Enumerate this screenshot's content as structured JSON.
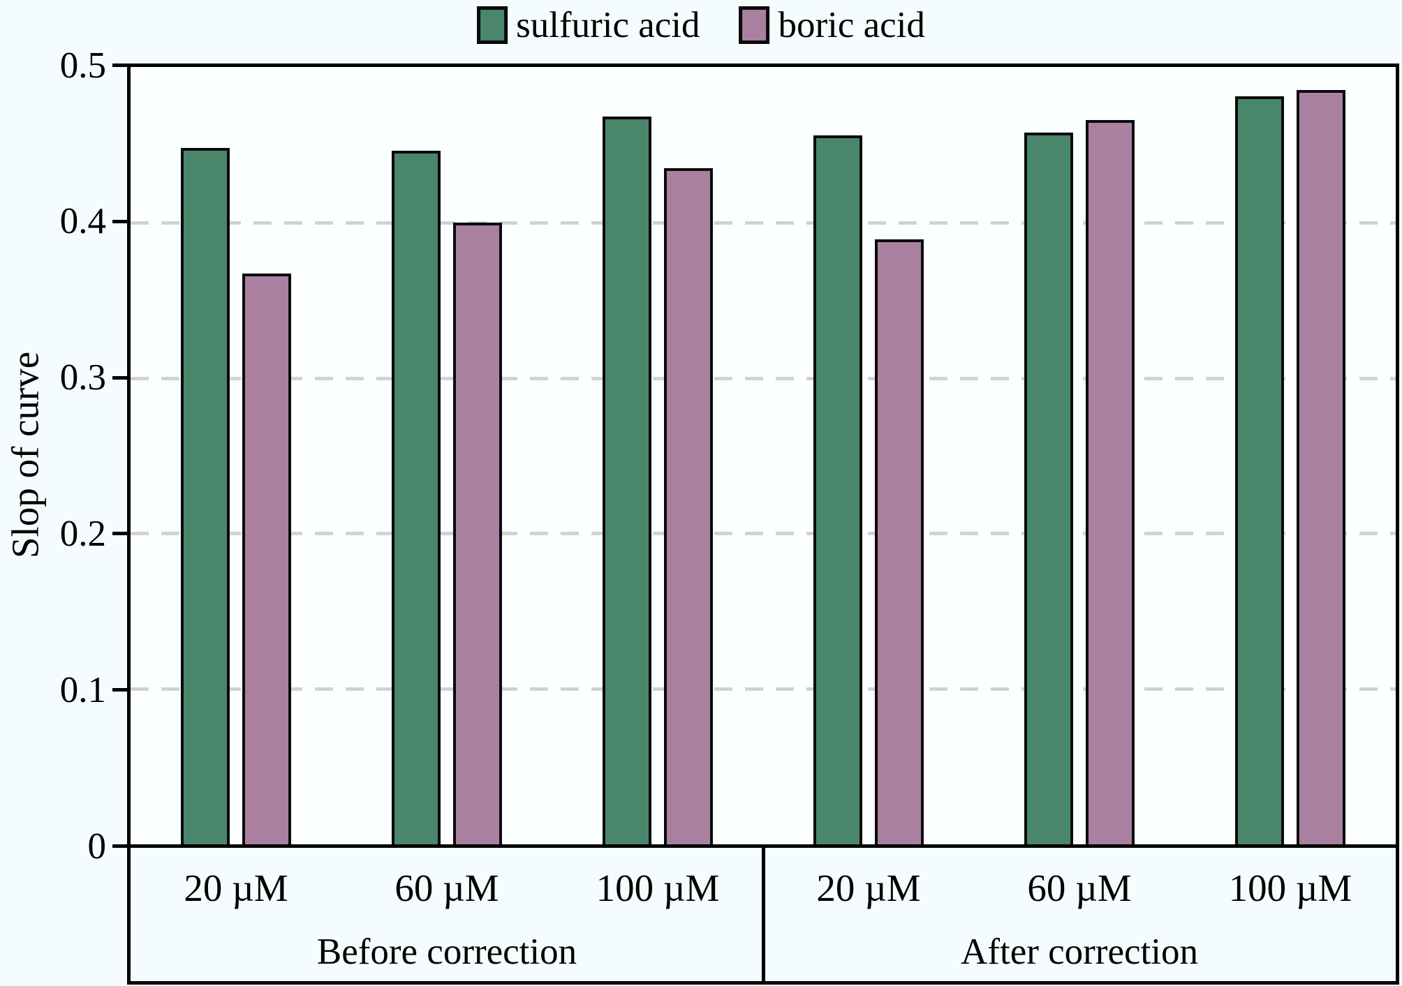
{
  "chart_data": {
    "type": "bar",
    "title": "",
    "ylabel": "Slop of curve",
    "xlabel": "",
    "ylim": [
      0,
      0.5
    ],
    "yticks": [
      0,
      0.1,
      0.2,
      0.3,
      0.4,
      0.5
    ],
    "ytick_labels": [
      "0",
      "0.1",
      "0.2",
      "0.3",
      "0.4",
      "0.5"
    ],
    "gridlines": [
      0.1,
      0.2,
      0.3,
      0.4
    ],
    "grid_style": "dashed light gray, horizontal only",
    "legend_position": "top-center",
    "sections": [
      {
        "label": "Before correction",
        "categories": [
          "20 µM",
          "60 µM",
          "100 µM"
        ]
      },
      {
        "label": "After correction",
        "categories": [
          "20 µM",
          "60 µM",
          "100 µM"
        ]
      }
    ],
    "series": [
      {
        "name": "sulfuric acid",
        "color": "#49866c",
        "values": [
          0.448,
          0.446,
          0.468,
          0.456,
          0.458,
          0.481
        ]
      },
      {
        "name": "boric acid",
        "color": "#a980a0",
        "values": [
          0.367,
          0.4,
          0.435,
          0.389,
          0.466,
          0.485
        ]
      }
    ]
  },
  "colors": {
    "background": "#f4fcfd",
    "plot_background": "#fcffff",
    "axis": "#000000",
    "gridline": "#d2d2d2",
    "bar_outline": "#0a0a0a"
  }
}
